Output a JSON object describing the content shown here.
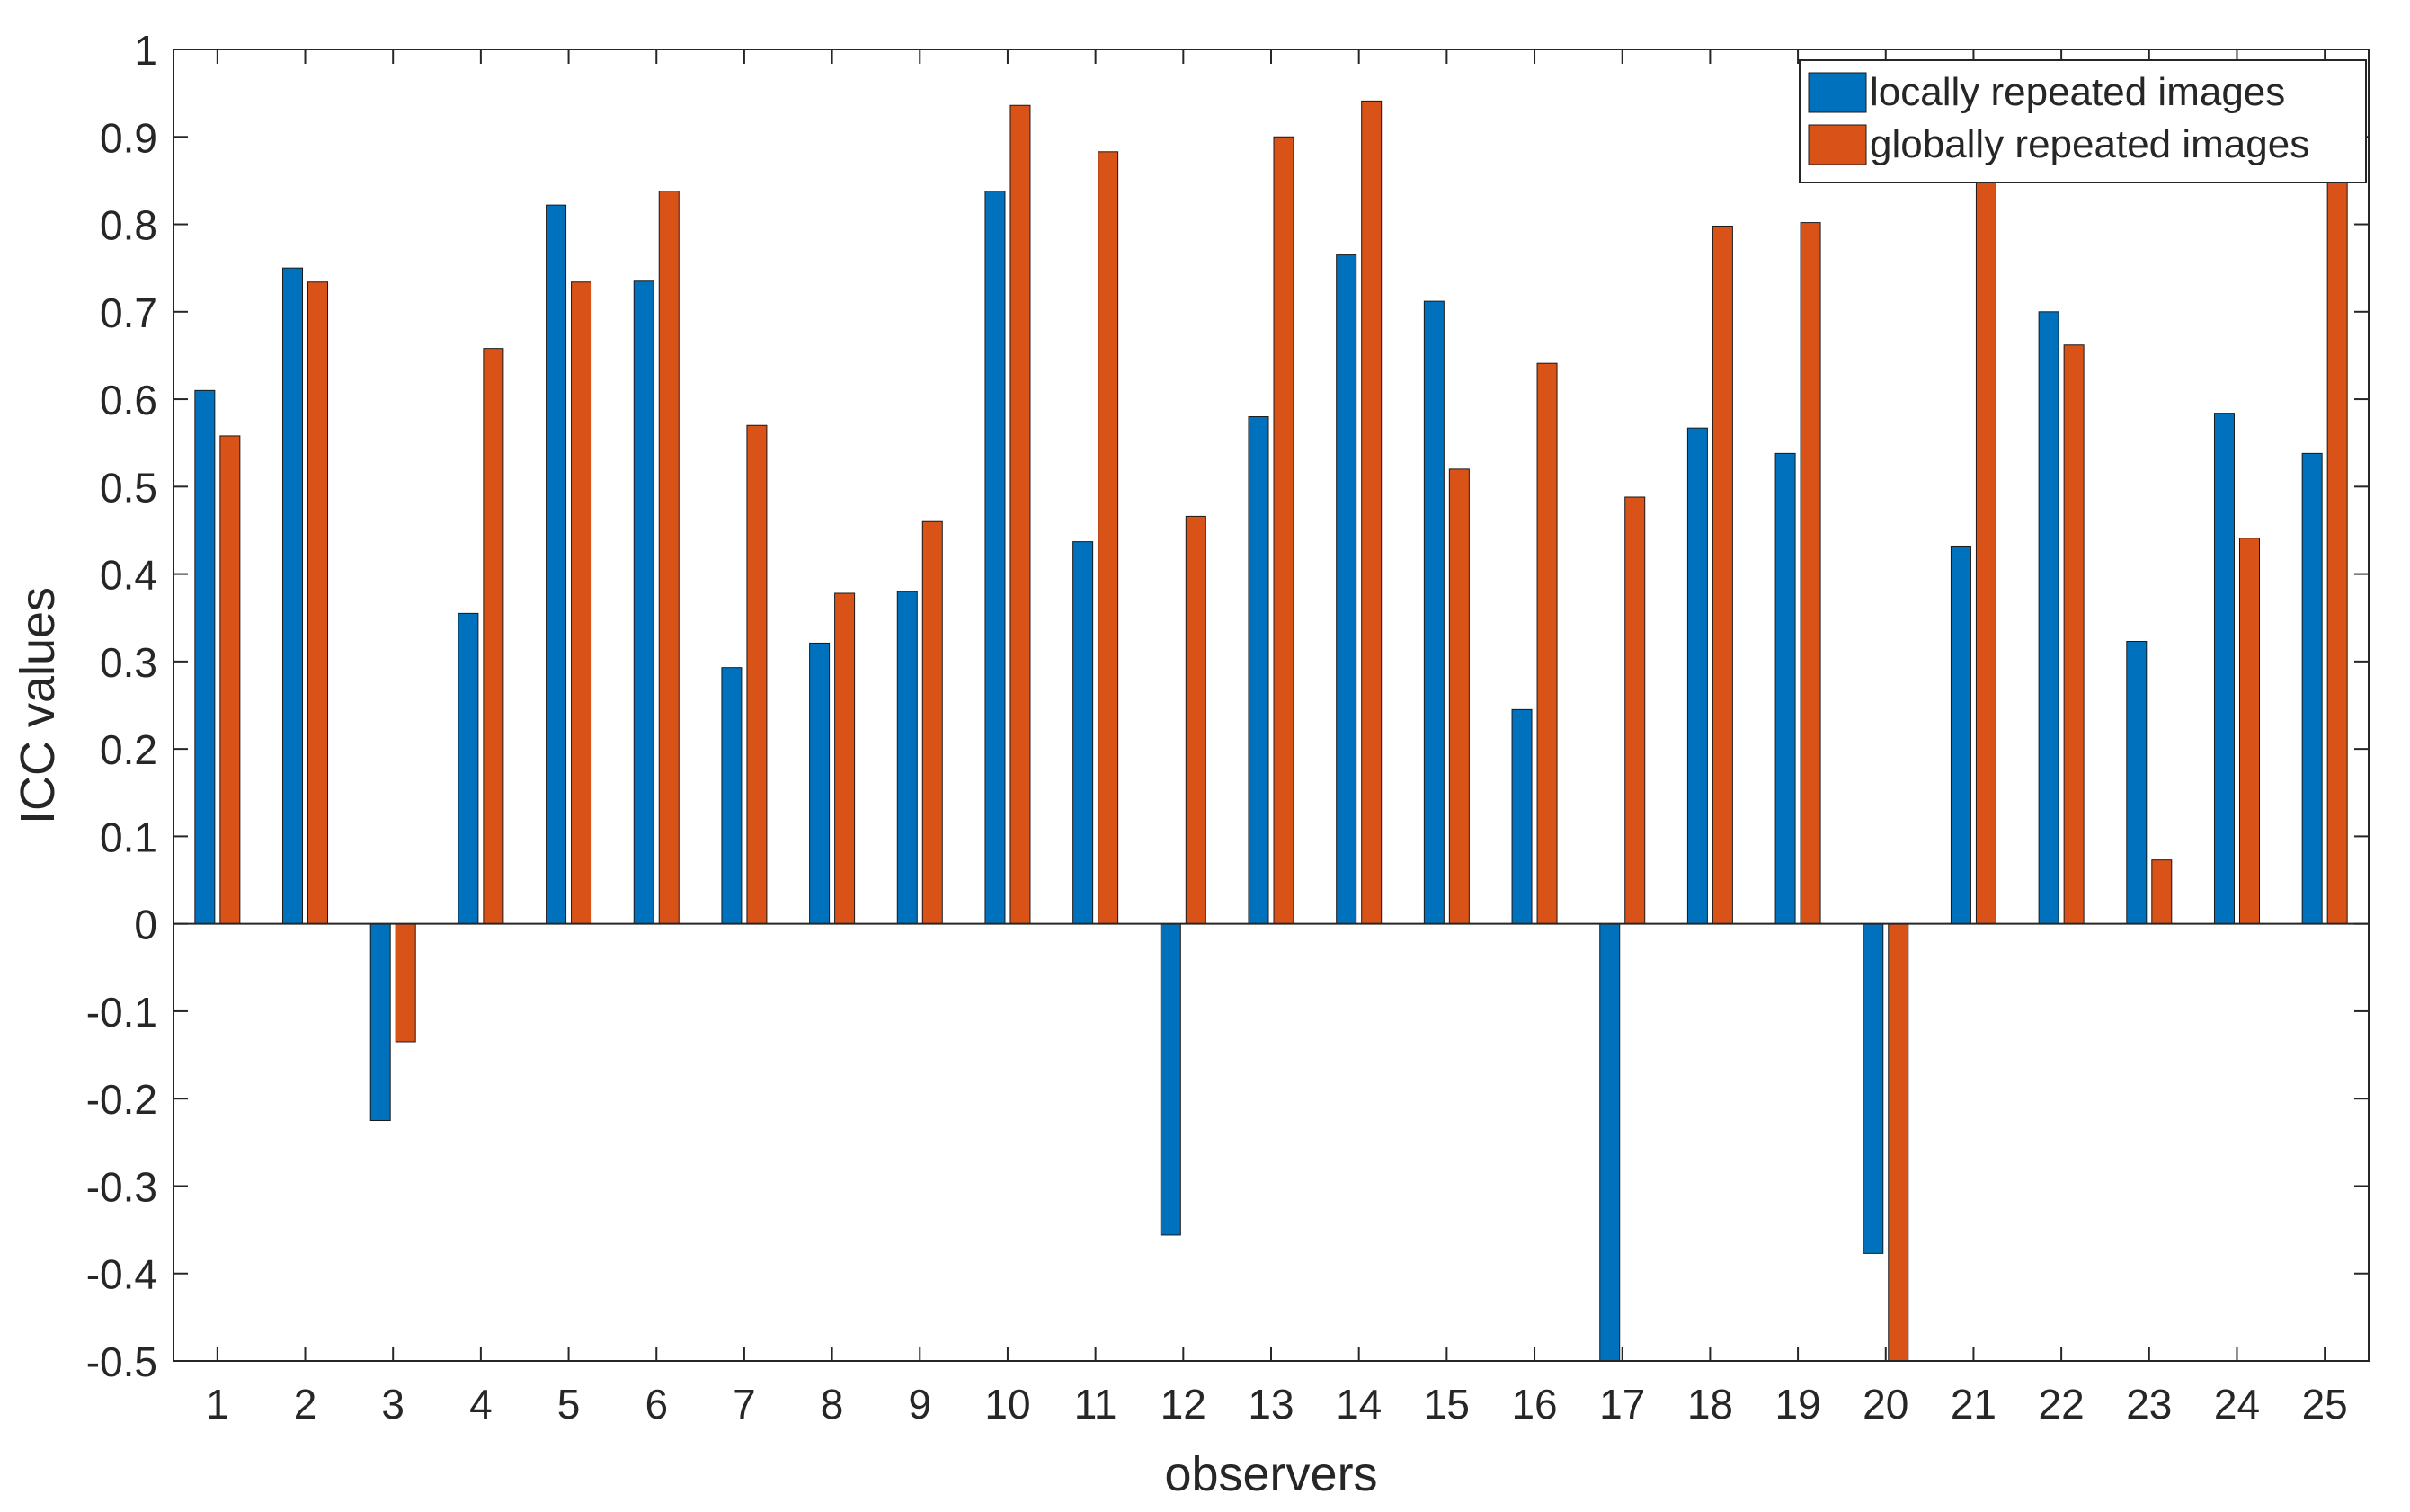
{
  "chart_data": {
    "type": "bar",
    "title": "",
    "xlabel": "observers",
    "ylabel": "ICC values",
    "ylim": [
      -0.5,
      1
    ],
    "yticks": [
      -0.5,
      -0.4,
      -0.3,
      -0.2,
      -0.1,
      0,
      0.1,
      0.2,
      0.3,
      0.4,
      0.5,
      0.6,
      0.7,
      0.8,
      0.9,
      1
    ],
    "ytick_labels": [
      "-0.5",
      "-0.4",
      "-0.3",
      "-0.2",
      "-0.1",
      "0",
      "0.1",
      "0.2",
      "0.3",
      "0.4",
      "0.5",
      "0.6",
      "0.7",
      "0.8",
      "0.9",
      "1"
    ],
    "grid": false,
    "legend_position": "top-right",
    "categories": [
      "1",
      "2",
      "3",
      "4",
      "5",
      "6",
      "7",
      "8",
      "9",
      "10",
      "11",
      "12",
      "13",
      "14",
      "15",
      "16",
      "17",
      "18",
      "19",
      "20",
      "21",
      "22",
      "23",
      "24",
      "25"
    ],
    "series": [
      {
        "name": "locally repeated images",
        "color": "#0072BD",
        "values": [
          0.61,
          0.75,
          -0.225,
          0.355,
          0.822,
          0.735,
          0.293,
          0.321,
          0.38,
          0.838,
          0.437,
          -0.356,
          0.58,
          0.765,
          0.712,
          0.245,
          -0.5,
          0.567,
          0.538,
          -0.377,
          0.432,
          0.7,
          0.323,
          0.584,
          0.538
        ]
      },
      {
        "name": "globally repeated images",
        "color": "#D95319",
        "values": [
          0.558,
          0.734,
          -0.135,
          0.658,
          0.734,
          0.838,
          0.57,
          0.378,
          0.46,
          0.936,
          0.883,
          0.466,
          0.9,
          0.941,
          0.52,
          0.641,
          0.488,
          0.798,
          0.802,
          -0.5,
          0.86,
          0.662,
          0.073,
          0.441,
          0.86
        ]
      }
    ]
  }
}
